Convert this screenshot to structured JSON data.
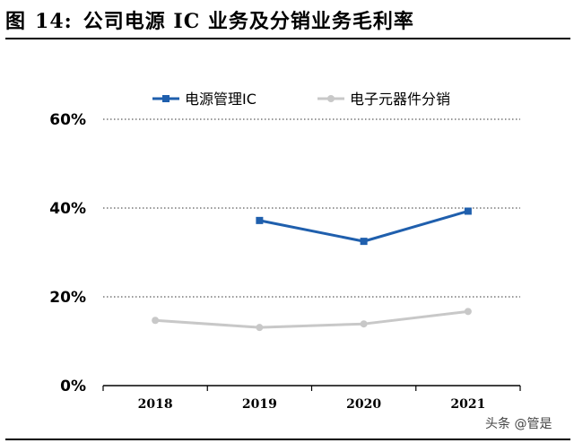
{
  "figure": {
    "label": "图",
    "number": "14:",
    "title": "公司电源 IC 业务及分销业务毛利率"
  },
  "watermark": "头条 @管是",
  "chart_data": {
    "type": "line",
    "title": "公司电源 IC 业务及分销业务毛利率",
    "xlabel": "",
    "ylabel": "",
    "categories": [
      "2018",
      "2019",
      "2020",
      "2021"
    ],
    "ylim": [
      0,
      0.6
    ],
    "yticks": [
      0,
      0.2,
      0.4,
      0.6
    ],
    "ytick_labels": [
      "0%",
      "20%",
      "40%",
      "60%"
    ],
    "grid": "dotted-horizontal",
    "legend_position": "top-center",
    "series": [
      {
        "name": "电源管理IC",
        "color": "#1F5FAD",
        "marker": "square",
        "values": [
          null,
          0.372,
          0.325,
          0.393
        ]
      },
      {
        "name": "电子元器件分销",
        "color": "#C8C8C8",
        "marker": "circle",
        "values": [
          0.147,
          0.131,
          0.139,
          0.167
        ]
      }
    ]
  }
}
